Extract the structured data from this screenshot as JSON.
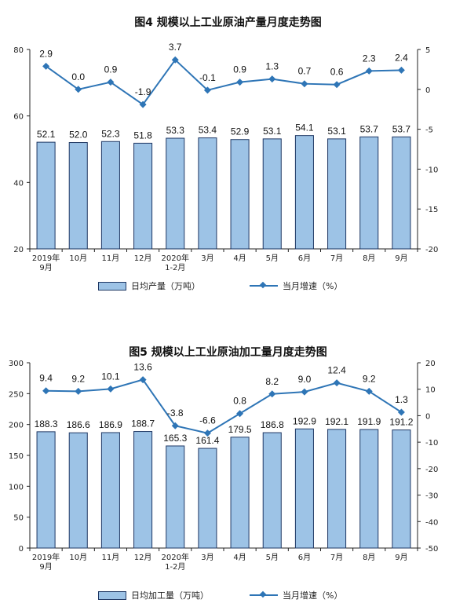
{
  "chart_data": [
    {
      "type": "bar",
      "title": "图4  规模以上工业原油产量月度走势图",
      "categories": [
        [
          "2019年",
          "9月"
        ],
        [
          "10月"
        ],
        [
          "11月"
        ],
        [
          "12月"
        ],
        [
          "2020年",
          "1-2月"
        ],
        [
          "3月"
        ],
        [
          "4月"
        ],
        [
          "5月"
        ],
        [
          "6月"
        ],
        [
          "7月"
        ],
        [
          "8月"
        ],
        [
          "9月"
        ]
      ],
      "series": [
        {
          "name": "日均产量（万吨）",
          "axis": "left",
          "kind": "bar",
          "values": [
            52.1,
            52.0,
            52.3,
            51.8,
            53.3,
            53.4,
            52.9,
            53.1,
            54.1,
            53.1,
            53.7,
            53.7
          ],
          "labels": [
            "52.1",
            "52.0",
            "52.3",
            "51.8",
            "53.3",
            "53.4",
            "52.9",
            "53.1",
            "54.1",
            "53.1",
            "53.7",
            "53.7"
          ]
        },
        {
          "name": "当月增速（%）",
          "axis": "right",
          "kind": "line",
          "values": [
            2.9,
            0.0,
            0.9,
            -1.9,
            3.7,
            -0.1,
            0.9,
            1.3,
            0.7,
            0.6,
            2.3,
            2.4
          ],
          "labels": [
            "2.9",
            "0.0",
            "0.9",
            "-1.9",
            "3.7",
            "-0.1",
            "0.9",
            "1.3",
            "0.7",
            "0.6",
            "2.3",
            "2.4"
          ]
        }
      ],
      "ylim_left": [
        20,
        80
      ],
      "yticks_left": [
        "80",
        "60",
        "40",
        "20"
      ],
      "ylim_right": [
        -20,
        5
      ],
      "yticks_right": [
        "5",
        "0",
        "-5",
        "-10",
        "-15",
        "-20"
      ],
      "grid": false,
      "legend_position": "bottom",
      "colors": {
        "bar_fill": "#9dc3e6",
        "bar_stroke": "#1f3864",
        "line": "#2e75b6"
      }
    },
    {
      "type": "bar",
      "title": "图5  规模以上工业原油加工量月度走势图",
      "categories": [
        [
          "2019年",
          "9月"
        ],
        [
          "10月"
        ],
        [
          "11月"
        ],
        [
          "12月"
        ],
        [
          "2020年",
          "1-2月"
        ],
        [
          "3月"
        ],
        [
          "4月"
        ],
        [
          "5月"
        ],
        [
          "6月"
        ],
        [
          "7月"
        ],
        [
          "8月"
        ],
        [
          "9月"
        ]
      ],
      "series": [
        {
          "name": "日均加工量（万吨）",
          "axis": "left",
          "kind": "bar",
          "values": [
            188.3,
            186.6,
            186.9,
            188.7,
            165.3,
            161.4,
            179.5,
            186.8,
            192.9,
            192.1,
            191.9,
            191.2
          ],
          "labels": [
            "188.3",
            "186.6",
            "186.9",
            "188.7",
            "165.3",
            "161.4",
            "179.5",
            "186.8",
            "192.9",
            "192.1",
            "191.9",
            "191.2"
          ]
        },
        {
          "name": "当月增速（%）",
          "axis": "right",
          "kind": "line",
          "values": [
            9.4,
            9.2,
            10.1,
            13.6,
            -3.8,
            -6.6,
            0.8,
            8.2,
            9.0,
            12.4,
            9.2,
            1.3
          ],
          "labels": [
            "9.4",
            "9.2",
            "10.1",
            "13.6",
            "-3.8",
            "-6.6",
            "0.8",
            "8.2",
            "9.0",
            "12.4",
            "9.2",
            "1.3"
          ]
        }
      ],
      "ylim_left": [
        0,
        300
      ],
      "yticks_left": [
        "300",
        "250",
        "200",
        "150",
        "100",
        "50",
        "0"
      ],
      "ylim_right": [
        -50,
        20
      ],
      "yticks_right": [
        "20",
        "10",
        "0",
        "-10",
        "-20",
        "-30",
        "-40",
        "-50"
      ],
      "grid": false,
      "legend_position": "bottom",
      "colors": {
        "bar_fill": "#9dc3e6",
        "bar_stroke": "#1f3864",
        "line": "#2e75b6"
      }
    }
  ]
}
